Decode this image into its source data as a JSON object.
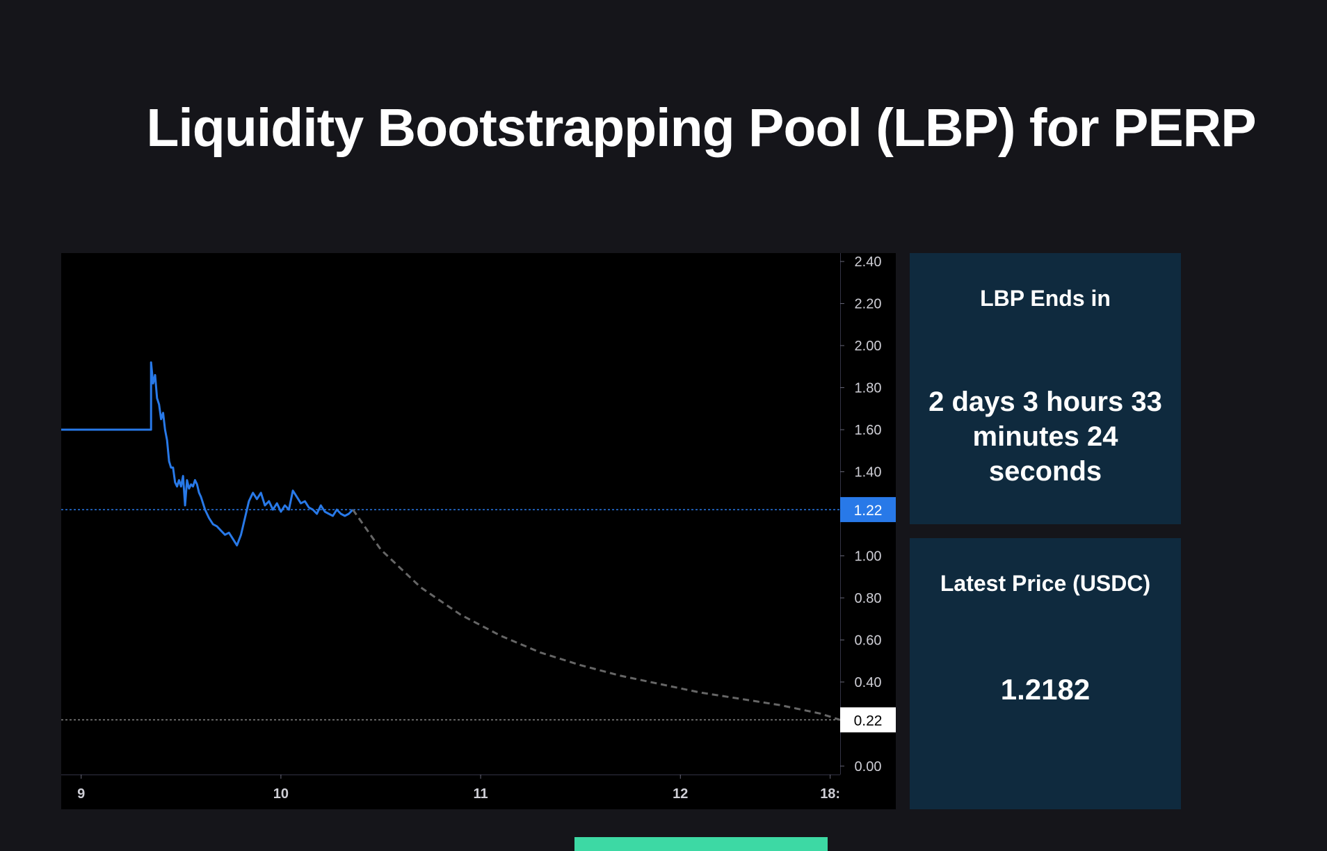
{
  "header": {
    "title": "Liquidity Bootstrapping Pool (LBP) for PERP"
  },
  "countdown_card": {
    "title": "LBP Ends in",
    "value": "2 days 3 hours 33 minutes 24 seconds"
  },
  "price_card": {
    "title": "Latest Price (USDC)",
    "value": "1.2182"
  },
  "colors": {
    "background": "#15151a",
    "chart_background": "#000000",
    "card_background": "#0f2a3e",
    "price_line": "#2879e8",
    "projection_line": "#666666",
    "button": "#3dd9a4"
  },
  "chart_data": {
    "type": "line",
    "title": "",
    "xlabel": "",
    "ylabel": "",
    "x_ticks": [
      "9",
      "10",
      "11",
      "12",
      "18:"
    ],
    "y_ticks": [
      "2.40",
      "2.20",
      "2.00",
      "1.80",
      "1.60",
      "1.40",
      "1.00",
      "0.80",
      "0.60",
      "0.40",
      "0.00"
    ],
    "xlim": [
      8.9,
      12.8
    ],
    "ylim": [
      -0.04,
      2.44
    ],
    "grid": false,
    "current_price_label": "1.22",
    "current_price": 1.22,
    "final_price_label": "0.22",
    "final_price": 0.22,
    "series": [
      {
        "style": "solid",
        "x": [
          8.9,
          9.35,
          9.35,
          9.36,
          9.37,
          9.38,
          9.39,
          9.4,
          9.41,
          9.42,
          9.43,
          9.44,
          9.45,
          9.46,
          9.47,
          9.48,
          9.49,
          9.5,
          9.51,
          9.52,
          9.53,
          9.54,
          9.55,
          9.56,
          9.57,
          9.58,
          9.59,
          9.6,
          9.62,
          9.64,
          9.66,
          9.68,
          9.7,
          9.72,
          9.74,
          9.76,
          9.78,
          9.8,
          9.82,
          9.84,
          9.86,
          9.88,
          9.9,
          9.92,
          9.94,
          9.96,
          9.98,
          10.0,
          10.02,
          10.04,
          10.06,
          10.08,
          10.1,
          10.12,
          10.14,
          10.16,
          10.18,
          10.2,
          10.22,
          10.24,
          10.26,
          10.28,
          10.3,
          10.32,
          10.34,
          10.36
        ],
        "y": [
          1.6,
          1.6,
          1.92,
          1.82,
          1.86,
          1.75,
          1.72,
          1.65,
          1.68,
          1.6,
          1.55,
          1.45,
          1.42,
          1.42,
          1.35,
          1.33,
          1.36,
          1.33,
          1.38,
          1.24,
          1.36,
          1.32,
          1.34,
          1.33,
          1.36,
          1.34,
          1.3,
          1.28,
          1.22,
          1.18,
          1.15,
          1.14,
          1.12,
          1.1,
          1.11,
          1.08,
          1.05,
          1.1,
          1.18,
          1.26,
          1.3,
          1.27,
          1.3,
          1.24,
          1.26,
          1.22,
          1.25,
          1.21,
          1.24,
          1.22,
          1.31,
          1.28,
          1.25,
          1.26,
          1.23,
          1.22,
          1.2,
          1.24,
          1.21,
          1.2,
          1.19,
          1.22,
          1.2,
          1.19,
          1.2,
          1.22
        ]
      },
      {
        "style": "dashed",
        "x": [
          10.36,
          10.5,
          10.7,
          10.9,
          11.1,
          11.3,
          11.5,
          11.7,
          11.9,
          12.1,
          12.3,
          12.5,
          12.7,
          12.8
        ],
        "y": [
          1.22,
          1.03,
          0.85,
          0.72,
          0.62,
          0.54,
          0.48,
          0.43,
          0.39,
          0.35,
          0.32,
          0.29,
          0.25,
          0.22
        ]
      }
    ]
  }
}
